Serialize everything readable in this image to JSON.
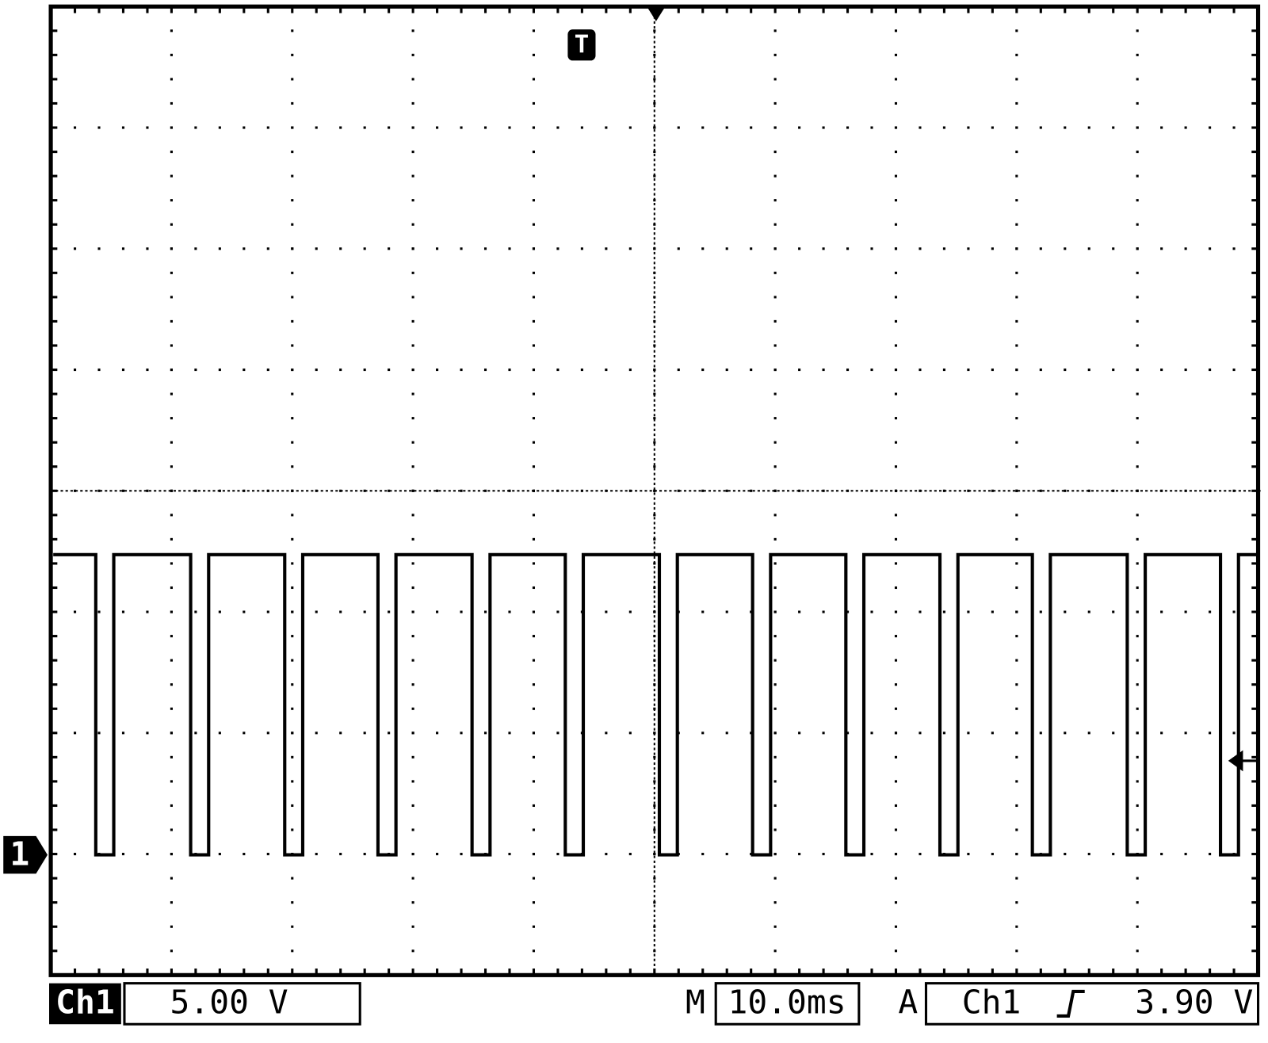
{
  "channel_label": "Ch1",
  "volts_per_div": "5.00 V",
  "timebase_prefix": "M",
  "timebase": "10.0ms",
  "trigger_prefix": "A",
  "trigger_source": "Ch1",
  "trigger_level": "3.90 V",
  "channel_marker": "1",
  "trigger_marker": "T"
}
